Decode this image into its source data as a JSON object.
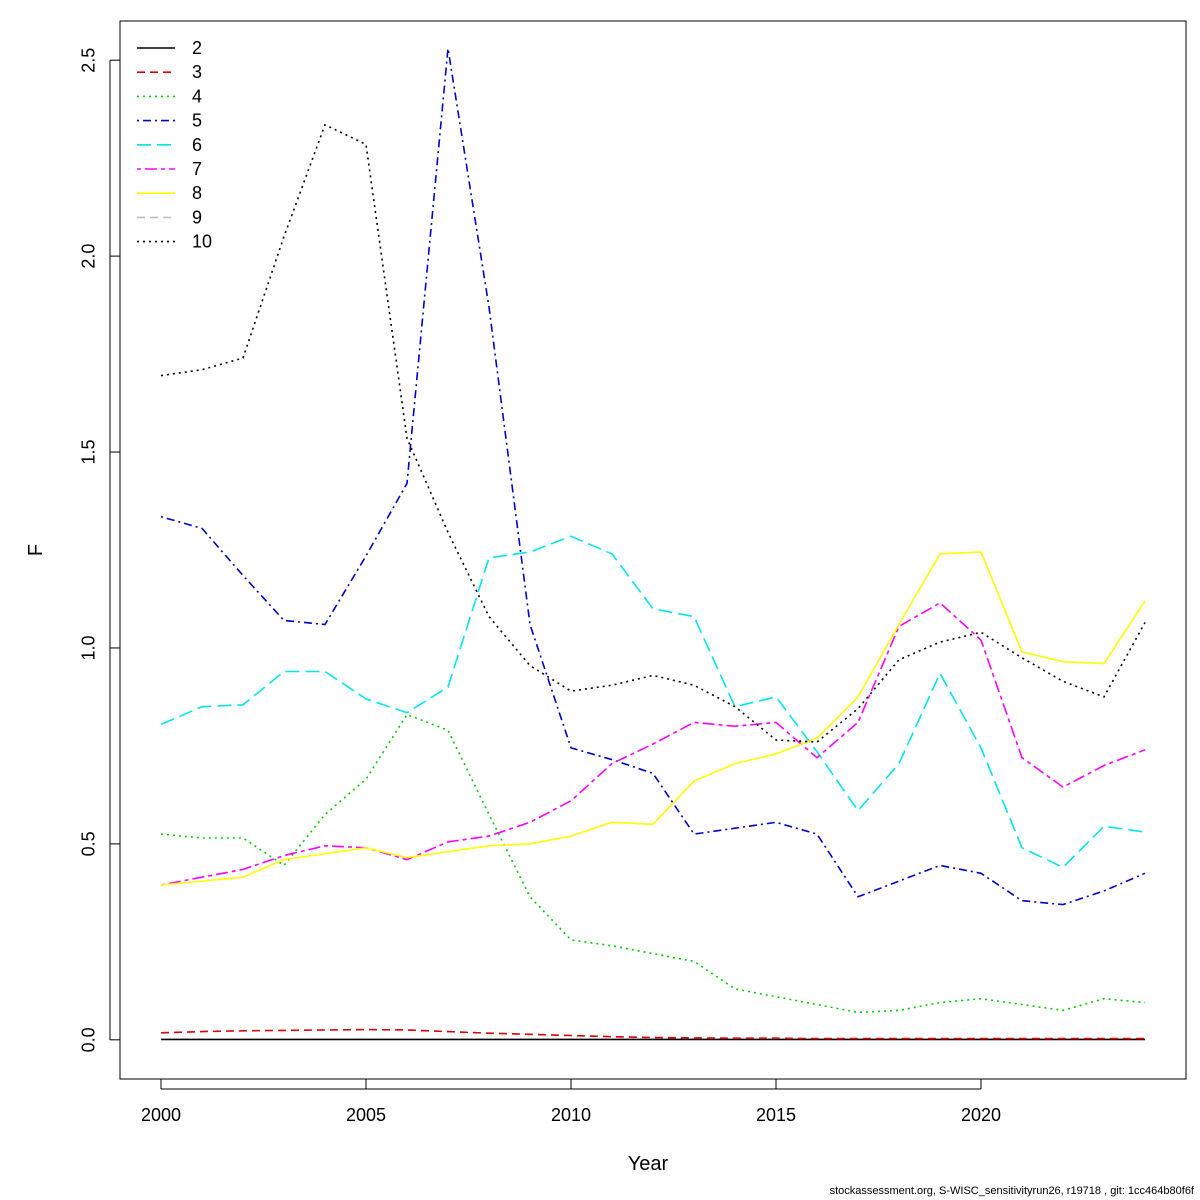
{
  "chart_data": {
    "type": "line",
    "xlabel": "Year",
    "ylabel": "F",
    "xlim": [
      1999,
      2025
    ],
    "ylim": [
      -0.1,
      2.6
    ],
    "x_ticks": [
      2000,
      2005,
      2010,
      2015,
      2020
    ],
    "y_ticks": [
      0.0,
      0.5,
      1.0,
      1.5,
      2.0,
      2.5
    ],
    "y_tick_labels": [
      "0.0",
      "0.5",
      "1.0",
      "1.5",
      "2.0",
      "2.5"
    ],
    "grid": false,
    "legend_position": "top-left",
    "x": [
      2000,
      2001,
      2002,
      2003,
      2004,
      2005,
      2006,
      2007,
      2008,
      2009,
      2010,
      2011,
      2012,
      2013,
      2014,
      2015,
      2016,
      2017,
      2018,
      2019,
      2020,
      2021,
      2022,
      2023,
      2024
    ],
    "series": [
      {
        "name": "2",
        "color": "#000000",
        "dash": "solid",
        "values": [
          0.001,
          0.001,
          0.001,
          0.001,
          0.001,
          0.001,
          0.001,
          0.001,
          0.001,
          0.001,
          0.001,
          0.001,
          0.001,
          0.001,
          0.001,
          0.001,
          0.001,
          0.001,
          0.001,
          0.001,
          0.001,
          0.001,
          0.001,
          0.001,
          0.001
        ]
      },
      {
        "name": "3",
        "color": "#df0000",
        "dash": "dashed",
        "values": [
          0.018,
          0.021,
          0.023,
          0.024,
          0.025,
          0.026,
          0.025,
          0.021,
          0.017,
          0.014,
          0.011,
          0.008,
          0.006,
          0.005,
          0.004,
          0.004,
          0.003,
          0.003,
          0.003,
          0.003,
          0.003,
          0.003,
          0.003,
          0.003,
          0.003
        ]
      },
      {
        "name": "4",
        "color": "#00cd00",
        "dash": "dotted",
        "values": [
          0.525,
          0.515,
          0.515,
          0.445,
          0.575,
          0.665,
          0.83,
          0.79,
          0.575,
          0.365,
          0.255,
          0.24,
          0.22,
          0.2,
          0.13,
          0.11,
          0.09,
          0.07,
          0.075,
          0.095,
          0.105,
          0.09,
          0.075,
          0.105,
          0.095
        ]
      },
      {
        "name": "5",
        "color": "#0000cd",
        "dash": "dotdash",
        "values": [
          1.335,
          1.305,
          1.185,
          1.07,
          1.06,
          1.235,
          1.42,
          2.53,
          1.87,
          1.06,
          0.745,
          0.715,
          0.68,
          0.525,
          0.54,
          0.555,
          0.525,
          0.365,
          0.405,
          0.445,
          0.425,
          0.355,
          0.345,
          0.38,
          0.425
        ]
      },
      {
        "name": "6",
        "color": "#00e5ee",
        "dash": "longdash",
        "values": [
          0.805,
          0.85,
          0.855,
          0.94,
          0.94,
          0.87,
          0.835,
          0.9,
          1.23,
          1.245,
          1.285,
          1.24,
          1.1,
          1.08,
          0.85,
          0.875,
          0.735,
          0.585,
          0.705,
          0.935,
          0.745,
          0.49,
          0.44,
          0.545,
          0.53
        ]
      },
      {
        "name": "7",
        "color": "#ff00ff",
        "dash": "twodash",
        "values": [
          0.395,
          0.415,
          0.435,
          0.47,
          0.495,
          0.49,
          0.46,
          0.505,
          0.52,
          0.555,
          0.61,
          0.705,
          0.755,
          0.81,
          0.8,
          0.81,
          0.72,
          0.81,
          1.055,
          1.115,
          1.02,
          0.72,
          0.645,
          0.7,
          0.74
        ]
      },
      {
        "name": "8",
        "color": "#ffff00",
        "dash": "solid",
        "values": [
          0.395,
          0.405,
          0.415,
          0.46,
          0.475,
          0.49,
          0.465,
          0.48,
          0.495,
          0.5,
          0.52,
          0.555,
          0.55,
          0.66,
          0.705,
          0.73,
          0.77,
          0.875,
          1.06,
          1.24,
          1.245,
          0.99,
          0.965,
          0.96,
          1.12
        ]
      },
      {
        "name": "9",
        "color": "#bebebe",
        "dash": "dashed",
        "values": [
          null,
          null,
          null,
          null,
          null,
          null,
          null,
          null,
          null,
          null,
          null,
          null,
          null,
          null,
          null,
          null,
          null,
          null,
          null,
          null,
          null,
          null,
          null,
          null,
          null
        ]
      },
      {
        "name": "10",
        "color": "#000000",
        "dash": "dotted",
        "values": [
          1.695,
          1.71,
          1.74,
          2.05,
          2.335,
          2.285,
          1.535,
          1.295,
          1.08,
          0.955,
          0.89,
          0.905,
          0.93,
          0.905,
          0.85,
          0.765,
          0.76,
          0.845,
          0.97,
          1.015,
          1.04,
          0.975,
          0.915,
          0.875,
          1.065
        ]
      }
    ]
  },
  "footer": {
    "text": "stockassessment.org, S-WISC_sensitivityrun26, r19718 , git: 1cc464b80f6f"
  }
}
